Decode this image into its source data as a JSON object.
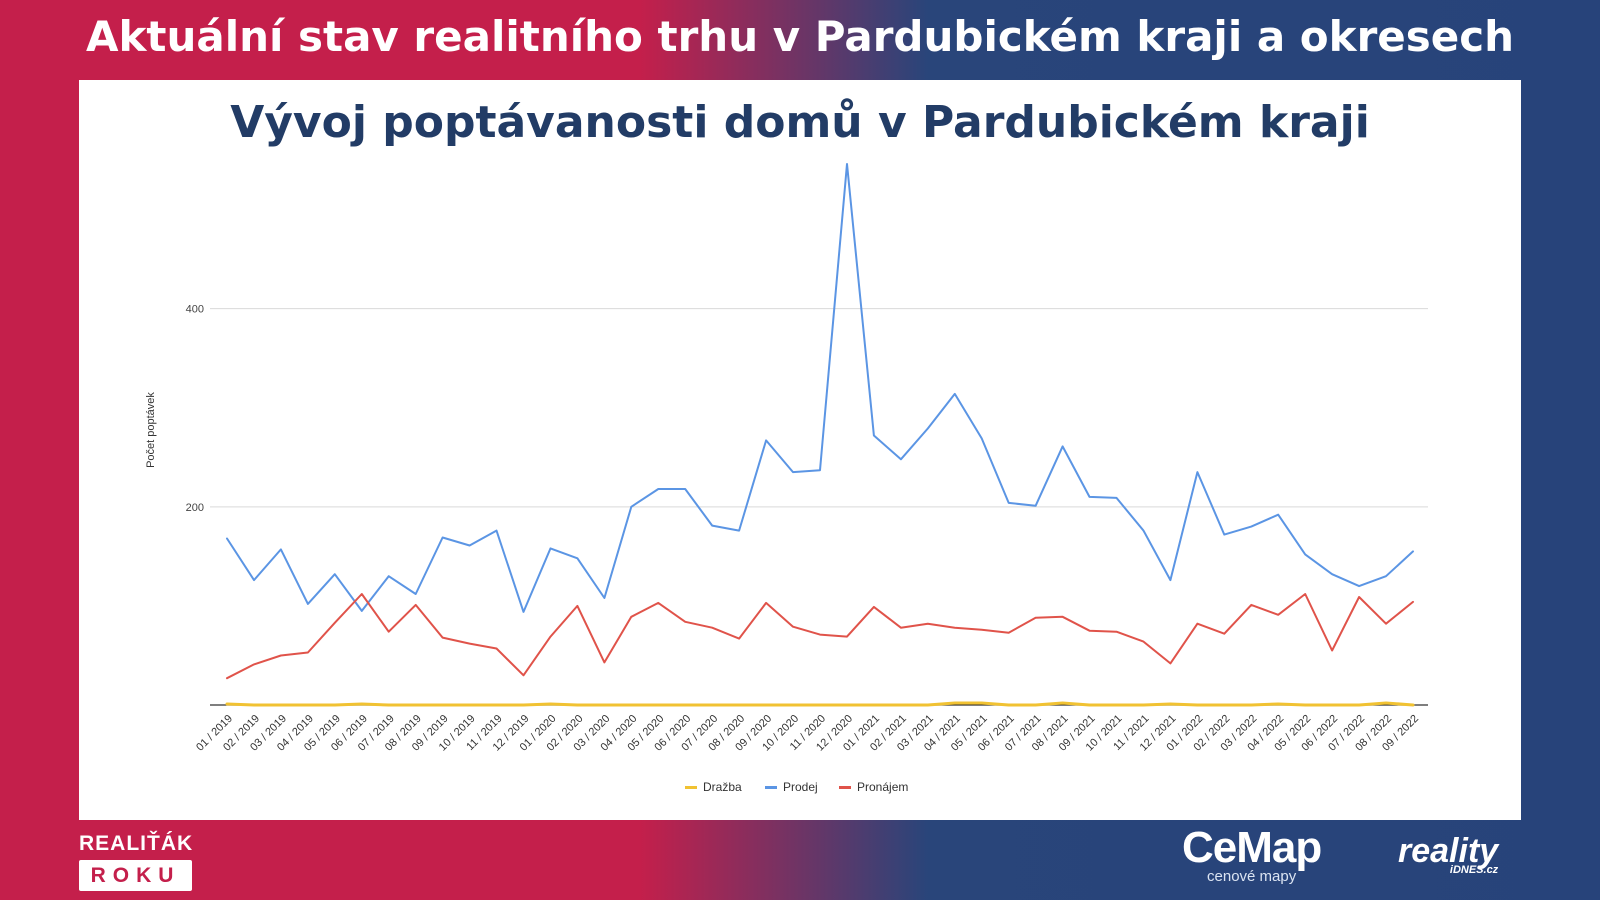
{
  "banner": {
    "title": "Aktuální stav realitního trhu v Pardubickém kraji a okresech"
  },
  "logos": {
    "realitak_top": "REALIŤÁK",
    "realitak_bottom": "ROKU",
    "cemap_main": "CeMap",
    "cemap_sub": "cenové mapy",
    "reality_main": "reality",
    "reality_sub": "iDNES.cz"
  },
  "colors": {
    "left_band": "#c41f4b",
    "right_band": "#27437a",
    "drazba": "#f1c232",
    "prodej": "#5b95e4",
    "pronajem": "#e0534a",
    "title": "#223c66"
  },
  "chart_data": {
    "type": "line",
    "title": "Vývoj poptávanosti domů v Pardubickém kraji",
    "xlabel": "",
    "ylabel": "Počet poptávek",
    "ylim": [
      0,
      550
    ],
    "yticks": [
      200,
      400
    ],
    "grid": true,
    "legend_position": "bottom",
    "categories": [
      "01 / 2019",
      "02 / 2019",
      "03 / 2019",
      "04 / 2019",
      "05 / 2019",
      "06 / 2019",
      "07 / 2019",
      "08 / 2019",
      "09 / 2019",
      "10 / 2019",
      "11 / 2019",
      "12 / 2019",
      "01 / 2020",
      "02 / 2020",
      "03 / 2020",
      "04 / 2020",
      "05 / 2020",
      "06 / 2020",
      "07 / 2020",
      "08 / 2020",
      "09 / 2020",
      "10 / 2020",
      "11 / 2020",
      "12 / 2020",
      "01 / 2021",
      "02 / 2021",
      "03 / 2021",
      "04 / 2021",
      "05 / 2021",
      "06 / 2021",
      "07 / 2021",
      "08 / 2021",
      "09 / 2021",
      "10 / 2021",
      "11 / 2021",
      "12 / 2021",
      "01 / 2022",
      "02 / 2022",
      "03 / 2022",
      "04 / 2022",
      "05 / 2022",
      "06 / 2022",
      "07 / 2022",
      "08 / 2022",
      "09 / 2022"
    ],
    "series": [
      {
        "name": "Dražba",
        "color": "#f1c232",
        "values": [
          1,
          0,
          0,
          0,
          0,
          1,
          0,
          0,
          0,
          0,
          0,
          0,
          1,
          0,
          0,
          0,
          0,
          0,
          0,
          0,
          0,
          0,
          0,
          0,
          0,
          0,
          0,
          2,
          2,
          0,
          0,
          2,
          0,
          0,
          0,
          1,
          0,
          0,
          0,
          1,
          0,
          0,
          0,
          2,
          0
        ]
      },
      {
        "name": "Prodej",
        "color": "#5b95e4",
        "values": [
          168,
          126,
          157,
          102,
          132,
          95,
          130,
          112,
          169,
          161,
          176,
          94,
          158,
          148,
          108,
          200,
          218,
          218,
          181,
          176,
          267,
          235,
          237,
          546,
          272,
          248,
          279,
          314,
          269,
          204,
          201,
          261,
          210,
          209,
          176,
          126,
          235,
          172,
          180,
          192,
          152,
          132,
          120,
          130,
          155
        ]
      },
      {
        "name": "Pronájem",
        "color": "#e0534a",
        "values": [
          27,
          41,
          50,
          53,
          83,
          112,
          74,
          101,
          68,
          62,
          57,
          30,
          69,
          100,
          43,
          89,
          103,
          84,
          78,
          67,
          103,
          79,
          71,
          69,
          99,
          78,
          82,
          78,
          76,
          73,
          88,
          89,
          75,
          74,
          64,
          42,
          82,
          72,
          101,
          91,
          112,
          55,
          109,
          82,
          104
        ]
      }
    ]
  }
}
